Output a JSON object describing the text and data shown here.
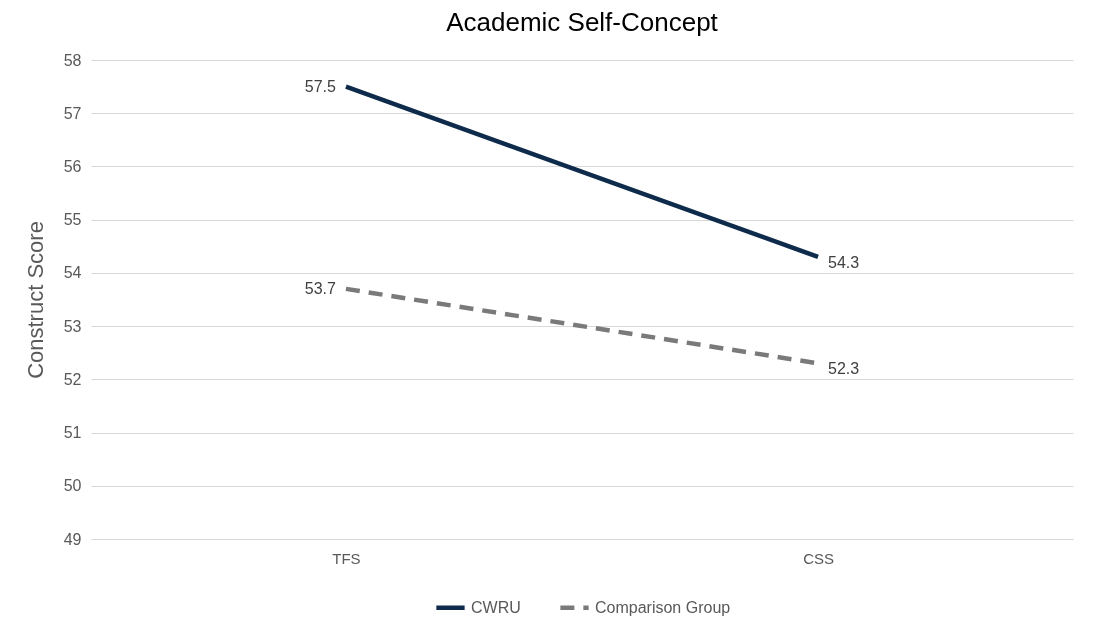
{
  "chart_data": {
    "type": "line",
    "title": "Academic Self-Concept",
    "ylabel": "Construct Score",
    "categories": [
      "TFS",
      "CSS"
    ],
    "series": [
      {
        "name": "CWRU",
        "color": "#0e2b4b",
        "values": [
          57.5,
          54.3
        ],
        "line_style": "solid"
      },
      {
        "name": "Comparison Group",
        "color": "#7a7a7a",
        "values": [
          53.7,
          52.3
        ],
        "line_style": "dashed"
      }
    ],
    "ylim": [
      49,
      58
    ],
    "yticks": [
      49,
      50,
      51,
      52,
      53,
      54,
      55,
      56,
      57,
      58
    ],
    "grid": "y",
    "legend": "bottom",
    "data_labels": true,
    "marker": "none"
  }
}
